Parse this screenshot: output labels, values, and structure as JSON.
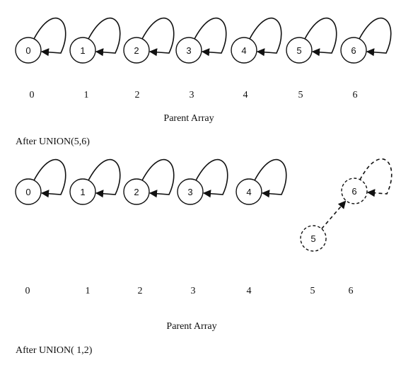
{
  "stage1": {
    "nodes": [
      {
        "label": "0",
        "parent": "0"
      },
      {
        "label": "1",
        "parent": "1"
      },
      {
        "label": "2",
        "parent": "2"
      },
      {
        "label": "3",
        "parent": "3"
      },
      {
        "label": "4",
        "parent": "4"
      },
      {
        "label": "5",
        "parent": "5"
      },
      {
        "label": "6",
        "parent": "6"
      }
    ],
    "index_labels": [
      "0",
      "1",
      "2",
      "3",
      "4",
      "5",
      "6"
    ],
    "caption": "Parent Array"
  },
  "heading1": "After UNION(5,6)",
  "stage2": {
    "nodes": [
      {
        "label": "0",
        "parent": "0"
      },
      {
        "label": "1",
        "parent": "1"
      },
      {
        "label": "2",
        "parent": "2"
      },
      {
        "label": "3",
        "parent": "3"
      },
      {
        "label": "4",
        "parent": "4"
      },
      {
        "label": "5",
        "parent": "6",
        "dashed": true
      },
      {
        "label": "6",
        "parent": "6",
        "dashed": true
      }
    ],
    "index_labels": [
      "0",
      "1",
      "2",
      "3",
      "4",
      "5",
      "6"
    ],
    "caption": "Parent Array"
  },
  "heading2": "After UNION( 1,2)",
  "colors": {
    "stroke": "#111111",
    "background": "#ffffff"
  }
}
